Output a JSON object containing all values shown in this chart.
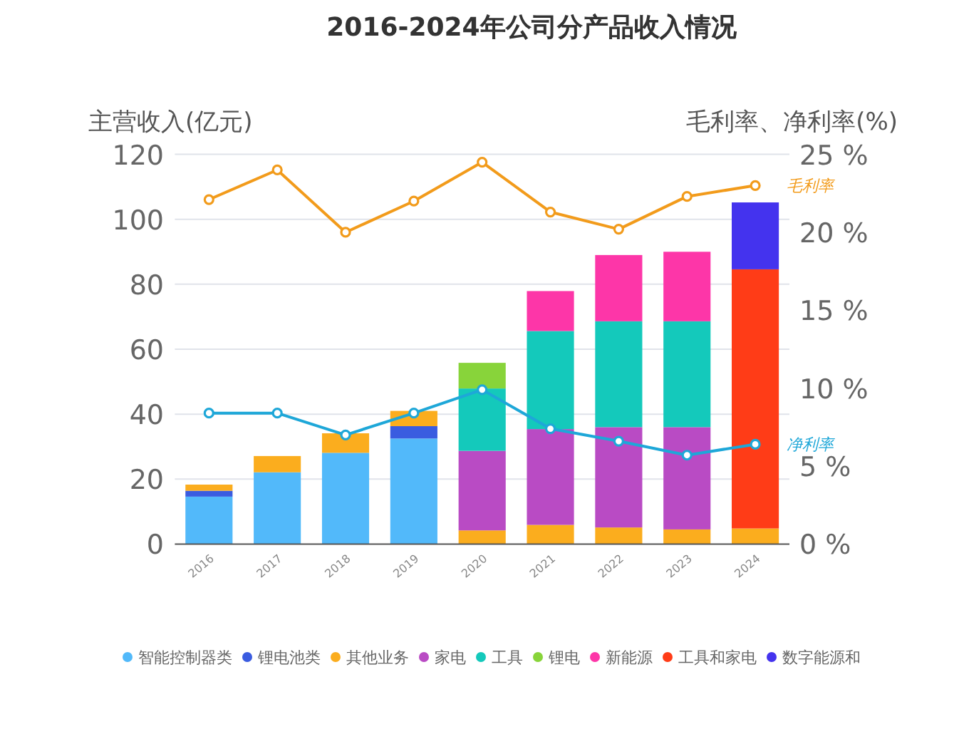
{
  "chart_data": {
    "type": "bar",
    "title": "2016-2024年公司分产品收入情况",
    "ylabel": "主营收入(亿元)",
    "y2label": "毛利率、净利率(%)",
    "categories": [
      "2016",
      "2017",
      "2018",
      "2019",
      "2020",
      "2021",
      "2022",
      "2023",
      "2024"
    ],
    "stacked": true,
    "grid": "y",
    "legend": "bottom",
    "ylim": [
      0,
      120
    ],
    "yticks": [
      0,
      20,
      40,
      60,
      80,
      100,
      120
    ],
    "y2lim": [
      0,
      25
    ],
    "y2ticks": [
      {
        "value": 0,
        "label": "0 %"
      },
      {
        "value": 5,
        "label": "5 %"
      },
      {
        "value": 10,
        "label": "10 %"
      },
      {
        "value": 15,
        "label": "15 %"
      },
      {
        "value": 20,
        "label": "20 %"
      },
      {
        "value": 25,
        "label": "25 %"
      }
    ],
    "series": [
      {
        "name": "智能控制器类",
        "color": "#52b9fa",
        "values": [
          14.6,
          22.1,
          28.1,
          32.5,
          null,
          null,
          null,
          null,
          null
        ]
      },
      {
        "name": "锂电池类",
        "color": "#3a5ce0",
        "values": [
          1.8,
          null,
          null,
          3.8,
          null,
          null,
          null,
          null,
          null
        ]
      },
      {
        "name": "其他业务",
        "color": "#fbad1e",
        "values": [
          1.9,
          5.0,
          6.0,
          4.7,
          4.2,
          5.9,
          5.1,
          4.5,
          4.8
        ]
      },
      {
        "name": "家电",
        "color": "#b94bc4",
        "values": [
          null,
          null,
          null,
          null,
          24.5,
          29.5,
          30.9,
          31.5,
          null
        ]
      },
      {
        "name": "工具",
        "color": "#14c9bb",
        "values": [
          null,
          null,
          null,
          null,
          19.2,
          30.2,
          32.6,
          32.6,
          null
        ]
      },
      {
        "name": "锂电",
        "color": "#88d43a",
        "values": [
          null,
          null,
          null,
          null,
          7.9,
          null,
          null,
          null,
          null
        ]
      },
      {
        "name": "新能源",
        "color": "#fd36a8",
        "values": [
          null,
          null,
          null,
          null,
          null,
          12.3,
          20.4,
          21.4,
          null
        ]
      },
      {
        "name": "工具和家电",
        "color": "#ff3c17",
        "values": [
          null,
          null,
          null,
          null,
          null,
          null,
          null,
          null,
          79.8
        ]
      },
      {
        "name": "数字能源和",
        "color": "#4433ee",
        "values": [
          null,
          null,
          null,
          null,
          null,
          null,
          null,
          null,
          20.6
        ]
      },
      {
        "name": "毛利率",
        "type": "line",
        "axis": "y2",
        "color": "#f29b1b",
        "marker": "circle",
        "values": [
          22.1,
          24.0,
          20.0,
          22.0,
          24.5,
          21.3,
          20.2,
          22.3,
          23.0
        ]
      },
      {
        "name": "净利率",
        "type": "line",
        "axis": "y2",
        "color": "#1ea7d8",
        "marker": "circle",
        "values": [
          8.4,
          8.4,
          7.0,
          8.4,
          9.9,
          7.4,
          6.6,
          5.7,
          6.4
        ]
      }
    ]
  }
}
